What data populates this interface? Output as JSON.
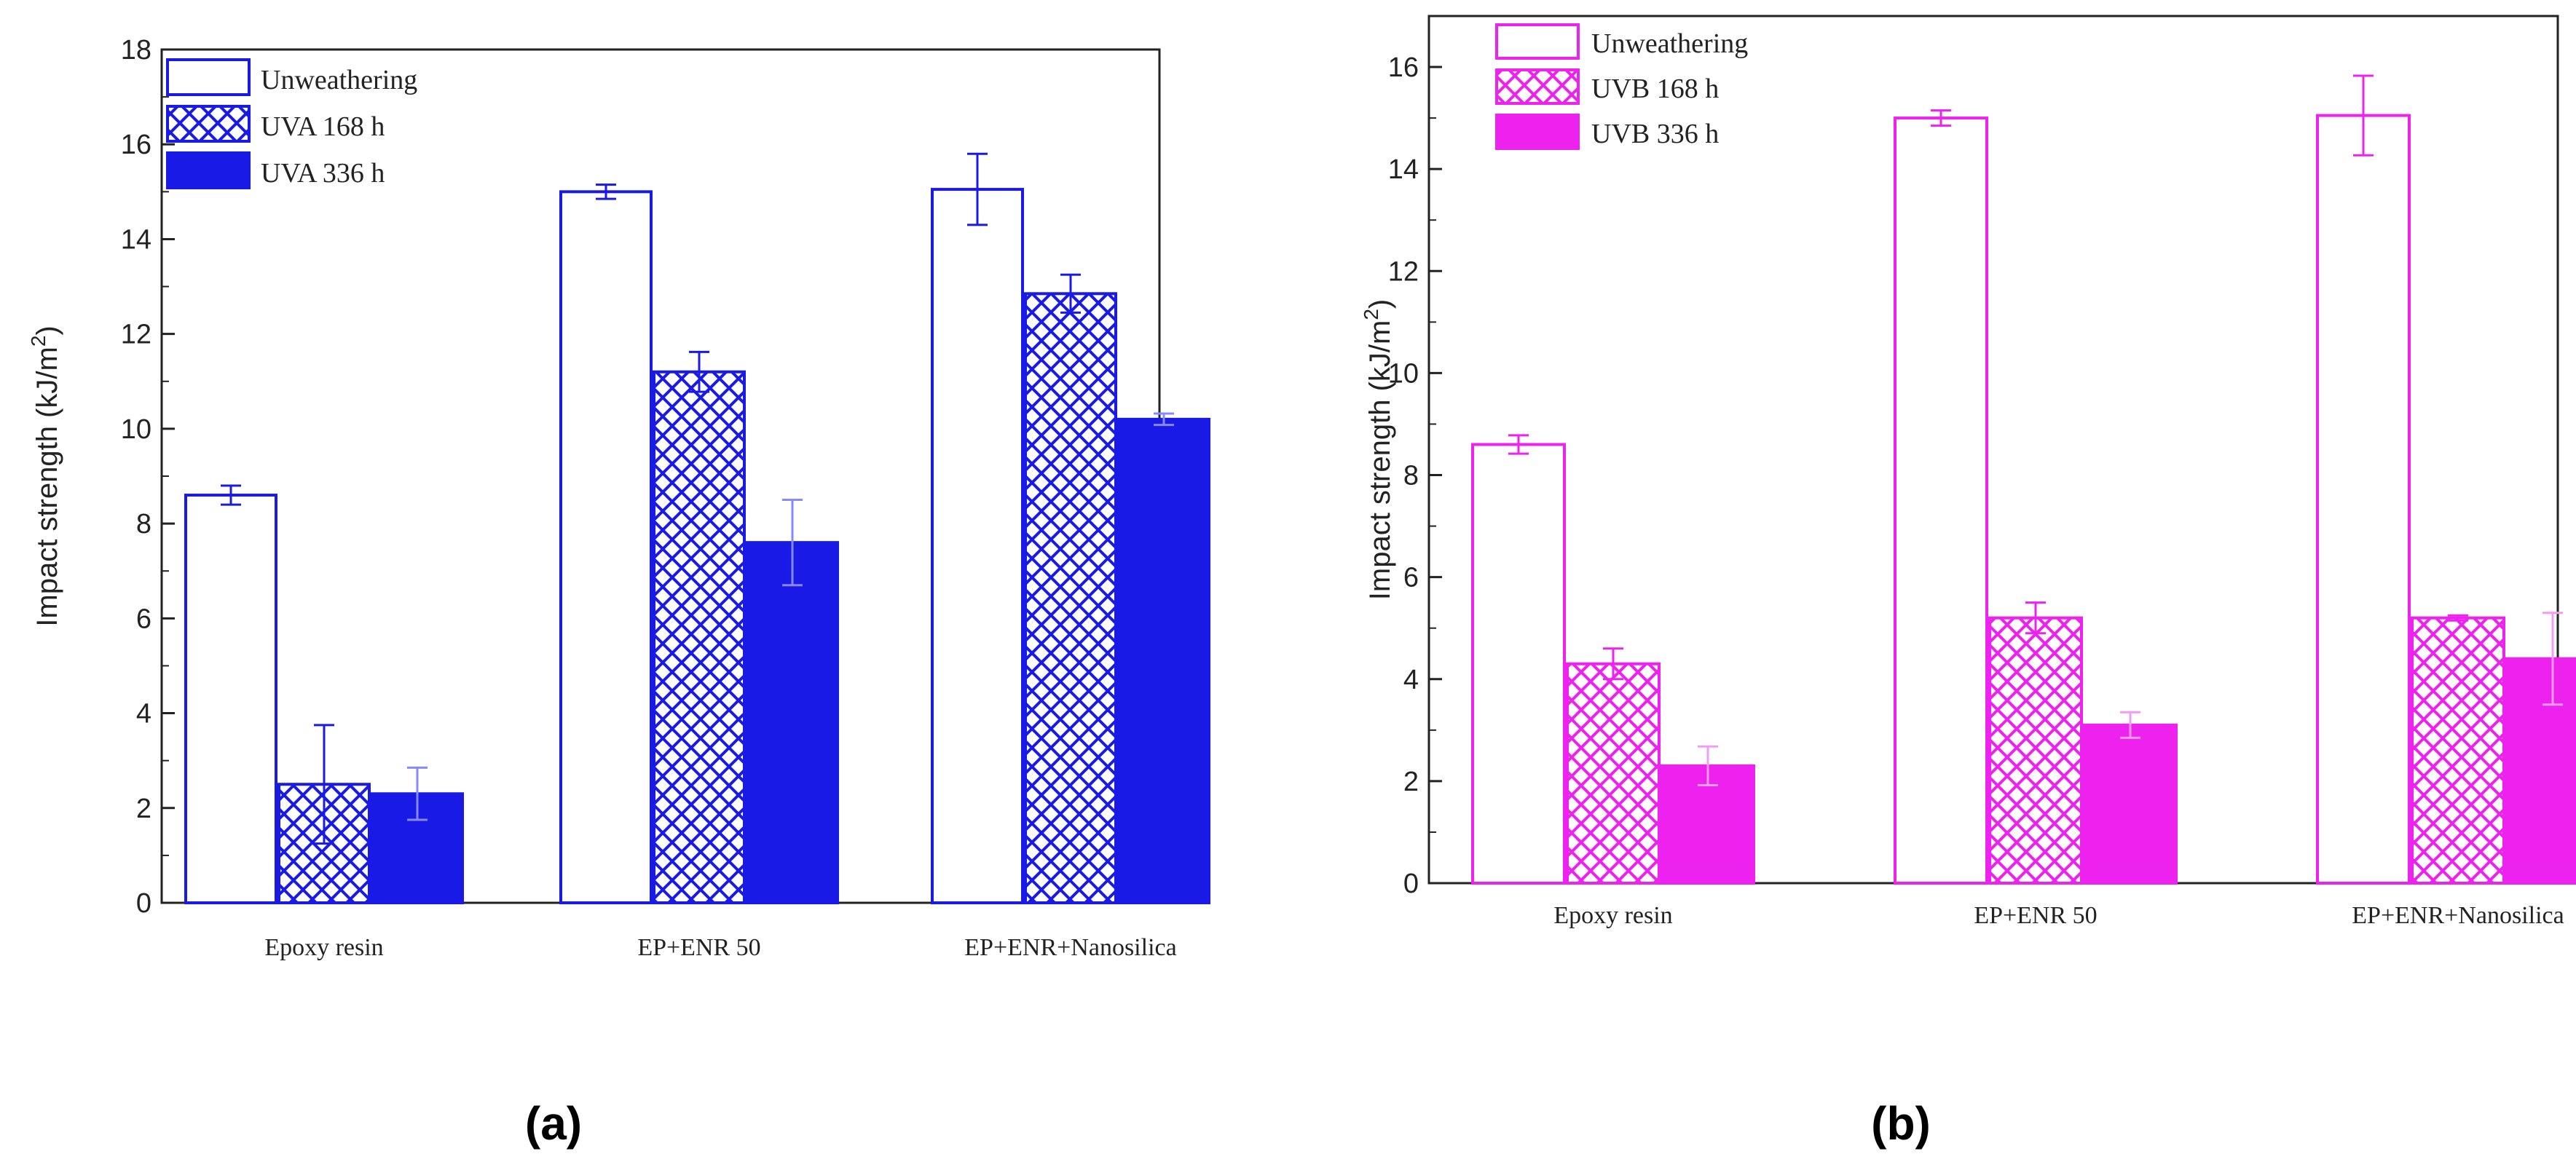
{
  "chart_data": [
    {
      "type": "bar",
      "panel_label": "(a)",
      "ylabel": "Impact strength (kJ/m",
      "ylabel_sup": "2",
      "ylabel_close": ")",
      "ylim": [
        0,
        18
      ],
      "yticks": [
        0,
        2,
        4,
        6,
        8,
        10,
        12,
        14,
        16,
        18
      ],
      "categories": [
        "Epoxy resin",
        "EP+ENR 50",
        "EP+ENR+Nanosilica"
      ],
      "color": "#1a1ae6",
      "legend_position": "top-left",
      "series": [
        {
          "name": "Unweathering",
          "fill": "hollow",
          "values": [
            8.6,
            15.0,
            15.05
          ],
          "errors": [
            0.2,
            0.15,
            0.75
          ]
        },
        {
          "name": "UVA 168 h",
          "fill": "crosshatch",
          "values": [
            2.5,
            11.2,
            12.85
          ],
          "errors": [
            1.25,
            0.42,
            0.4
          ]
        },
        {
          "name": "UVA 336 h",
          "fill": "solid",
          "values": [
            2.3,
            7.6,
            10.2
          ],
          "errors": [
            0.55,
            0.9,
            0.12
          ]
        }
      ]
    },
    {
      "type": "bar",
      "panel_label": "(b)",
      "ylabel": "Impact strength (kJ/m",
      "ylabel_sup": "2",
      "ylabel_close": ")",
      "ylim": [
        0,
        17
      ],
      "yticks": [
        0,
        2,
        4,
        6,
        8,
        10,
        12,
        14,
        16
      ],
      "categories": [
        "Epoxy resin",
        "EP+ENR 50",
        "EP+ENR+Nanosilica"
      ],
      "color": "#ee22ee",
      "legend_position": "top-left",
      "series": [
        {
          "name": "Unweathering",
          "fill": "hollow",
          "values": [
            8.6,
            15.0,
            15.05
          ],
          "errors": [
            0.18,
            0.15,
            0.78
          ]
        },
        {
          "name": "UVB 168 h",
          "fill": "crosshatch",
          "values": [
            4.3,
            5.2,
            5.2
          ],
          "errors": [
            0.3,
            0.3,
            0.05
          ]
        },
        {
          "name": "UVB 336 h",
          "fill": "solid",
          "values": [
            2.3,
            3.1,
            4.4
          ],
          "errors": [
            0.38,
            0.25,
            0.9
          ]
        }
      ]
    }
  ]
}
